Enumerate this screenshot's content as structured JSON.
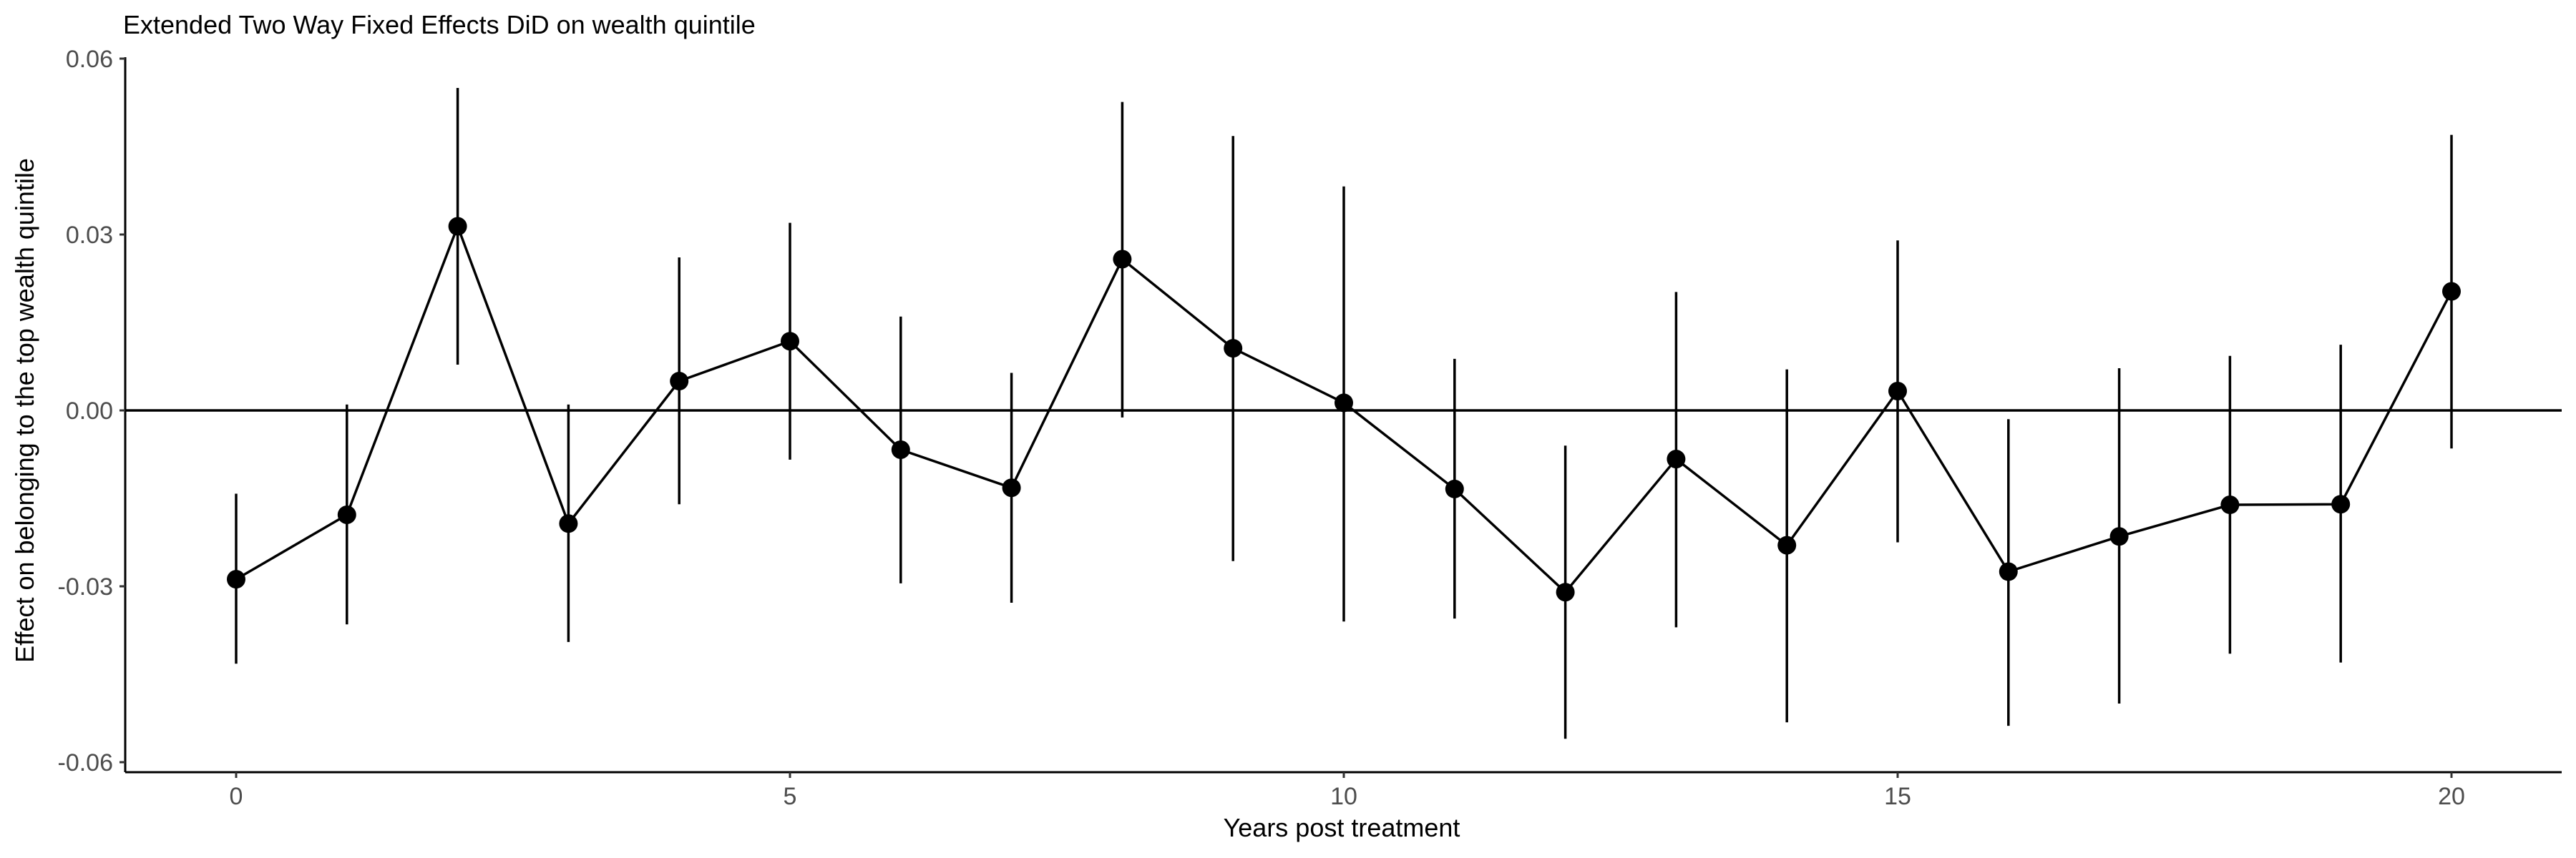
{
  "chart_data": {
    "type": "scatter",
    "title": "Extended Two Way Fixed Effects DiD on wealth quintile",
    "xlabel": "Years post treatment",
    "ylabel": "Effect on belonging to the top wealth quintile",
    "xlim": [
      -1.0,
      21.0
    ],
    "ylim": [
      -0.064,
      0.0607
    ],
    "x_ticks": [
      0,
      5,
      10,
      15,
      20
    ],
    "x_tick_labels": [
      "0",
      "5",
      "10",
      "15",
      "20"
    ],
    "y_ticks": [
      -0.06,
      -0.03,
      0.0,
      0.03,
      0.06
    ],
    "y_tick_labels": [
      "-0.06",
      "-0.03",
      "0.00",
      "0.03",
      "0.06"
    ],
    "reference_line_y": 0.0,
    "grid": false,
    "point_color": "#000000",
    "series": [
      {
        "x": [
          0,
          1,
          2,
          3,
          4,
          5,
          6,
          7,
          8,
          9,
          10,
          11,
          12,
          13,
          14,
          15,
          16,
          17,
          18,
          19,
          20
        ],
        "y": [
          -0.0288,
          -0.0178,
          0.0314,
          -0.0193,
          0.005,
          0.0118,
          -0.0067,
          -0.0132,
          0.0258,
          0.0106,
          0.0013,
          -0.0134,
          -0.031,
          -0.0083,
          -0.023,
          0.0033,
          -0.0275,
          -0.0215,
          -0.0161,
          -0.016,
          0.0203
        ],
        "ci_low": [
          -0.0432,
          -0.0365,
          0.0078,
          -0.0395,
          -0.016,
          -0.0084,
          -0.0295,
          -0.0328,
          -0.0012,
          -0.0257,
          -0.036,
          -0.0355,
          -0.056,
          -0.037,
          -0.0532,
          -0.0225,
          -0.0538,
          -0.05,
          -0.0415,
          -0.043,
          -0.0065
        ],
        "ci_high": [
          -0.0142,
          0.001,
          0.055,
          0.001,
          0.0261,
          0.032,
          0.016,
          0.0064,
          0.0526,
          0.0468,
          0.0382,
          0.0088,
          -0.006,
          0.0202,
          0.007,
          0.029,
          -0.0015,
          0.0072,
          0.0093,
          0.0112,
          0.047
        ]
      }
    ]
  }
}
